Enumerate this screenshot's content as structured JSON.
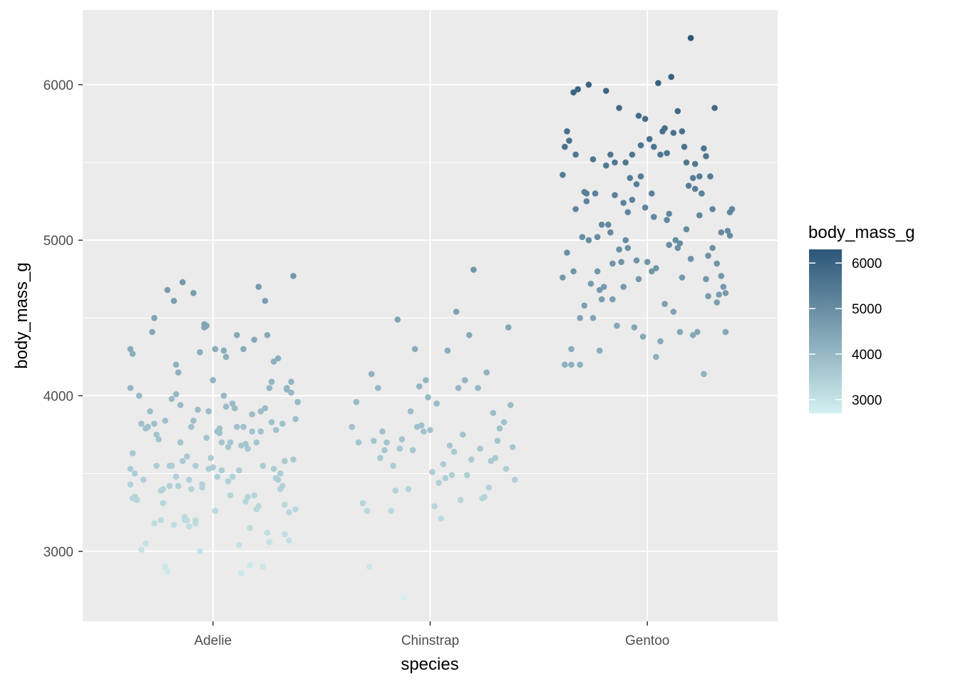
{
  "chart_data": {
    "type": "scatter",
    "jitter": true,
    "xlabel": "species",
    "ylabel": "body_mass_g",
    "categories": [
      "Adelie",
      "Chinstrap",
      "Gentoo"
    ],
    "ylim": [
      2550,
      6480
    ],
    "y_ticks": [
      3000,
      4000,
      5000,
      6000
    ],
    "y_tick_labels": [
      "3000",
      "4000",
      "5000",
      "6000"
    ],
    "grid": true,
    "color_scale": {
      "title": "body_mass_g",
      "low": 2700,
      "high": 6300,
      "low_color": "#d3f0f0",
      "high_color": "#2c5677",
      "ticks": [
        3000,
        4000,
        5000,
        6000
      ],
      "tick_labels": [
        "3000",
        "4000",
        "5000",
        "6000"
      ],
      "legend_position": "right"
    },
    "series": [
      {
        "category": "Adelie",
        "jitter": [
          -0.38,
          -0.38,
          -0.37,
          -0.36,
          -0.35,
          -0.33,
          -0.32,
          -0.31,
          -0.3,
          -0.29,
          -0.27,
          -0.26,
          -0.25,
          -0.23,
          -0.22,
          -0.21,
          -0.2,
          -0.19,
          -0.18,
          -0.17,
          -0.16,
          -0.15,
          -0.14,
          -0.13,
          -0.12,
          -0.11,
          -0.1,
          -0.09,
          -0.08,
          -0.07,
          -0.06,
          -0.05,
          -0.04,
          -0.03,
          -0.02,
          -0.01,
          0.0,
          0.01,
          0.02,
          0.03,
          0.04,
          0.05,
          0.06,
          0.07,
          0.08,
          0.09,
          0.1,
          0.11,
          0.12,
          0.13,
          0.14,
          0.15,
          0.16,
          0.17,
          0.18,
          0.19,
          0.2,
          0.21,
          0.22,
          0.23,
          0.24,
          0.25,
          0.26,
          0.27,
          0.28,
          0.29,
          0.3,
          0.31,
          0.32,
          0.33,
          0.34,
          0.35,
          0.36,
          0.37,
          0.38,
          0.39,
          -0.35,
          -0.34,
          -0.31,
          -0.27,
          -0.24,
          -0.22,
          -0.21,
          -0.19,
          -0.17,
          -0.16,
          -0.14,
          -0.12,
          -0.1,
          -0.08,
          -0.06,
          -0.04,
          -0.02,
          0.01,
          0.03,
          0.05,
          0.07,
          0.09,
          0.11,
          0.13,
          0.15,
          0.17,
          0.19,
          0.21,
          0.23,
          0.25,
          0.27,
          0.29,
          0.31,
          0.33,
          0.35,
          0.37,
          -0.33,
          -0.28,
          -0.26,
          -0.2,
          -0.15,
          -0.09,
          -0.03,
          0.02,
          0.08,
          0.14,
          0.2,
          0.26,
          0.32,
          0.36,
          -0.37,
          -0.32,
          -0.27,
          -0.23,
          -0.18,
          -0.13,
          -0.08,
          0.0,
          0.04,
          0.12,
          0.18,
          0.24,
          0.3,
          0.34,
          0.38,
          -0.24,
          -0.17,
          -0.11,
          -0.05,
          0.06,
          0.16,
          0.22,
          0.28,
          0.33
        ],
        "y": [
          4300,
          4050,
          3630,
          3350,
          3330,
          3010,
          3460,
          3050,
          3800,
          3900,
          4500,
          3750,
          3720,
          3400,
          2900,
          4680,
          3550,
          3980,
          4610,
          4200,
          3420,
          3700,
          4730,
          3200,
          3200,
          3160,
          3800,
          4660,
          3550,
          3910,
          4280,
          3430,
          4440,
          4450,
          3900,
          3600,
          4100,
          3260,
          3480,
          3760,
          3700,
          4000,
          3930,
          3450,
          3360,
          3480,
          3920,
          3800,
          3520,
          3680,
          4300,
          3320,
          3660,
          3150,
          3770,
          4360,
          3270,
          3290,
          3900,
          3550,
          4610,
          3120,
          3060,
          4090,
          3530,
          3470,
          3460,
          3400,
          3420,
          3300,
          4050,
          3070,
          4020,
          4770,
          3850,
          3960,
          3330,
          4000,
          3790,
          3820,
          3200,
          3840,
          2870,
          3550,
          4010,
          4150,
          3580,
          3610,
          3400,
          3180,
          3000,
          4460,
          3530,
          4300,
          3790,
          4290,
          3670,
          3950,
          4390,
          2860,
          3690,
          2910,
          3360,
          4700,
          2900,
          4390,
          3830,
          3780,
          3500,
          3110,
          3250,
          3590,
          3820,
          4410,
          3550,
          3420,
          3940,
          3840,
          3730,
          3770,
          3700,
          3800,
          3700,
          4050,
          3820,
          4090,
          3340,
          3460,
          3180,
          3310,
          3170,
          3220,
          3200,
          3540,
          3520,
          3040,
          3880,
          3920,
          4240,
          4040,
          3270,
          3390,
          3480,
          3460,
          3410,
          4250,
          3350,
          3770,
          4220,
          3580,
          3430,
          3530,
          4270,
          3500
        ]
      },
      {
        "category": "Chinstrap",
        "jitter": [
          -0.36,
          -0.34,
          -0.33,
          -0.31,
          -0.29,
          -0.27,
          -0.26,
          -0.24,
          -0.23,
          -0.22,
          -0.21,
          -0.2,
          -0.18,
          -0.17,
          -0.16,
          -0.15,
          -0.14,
          -0.13,
          -0.12,
          -0.1,
          -0.09,
          -0.08,
          -0.07,
          -0.06,
          -0.05,
          -0.04,
          -0.03,
          -0.02,
          -0.01,
          0.0,
          0.01,
          0.02,
          0.03,
          0.04,
          0.05,
          0.06,
          0.07,
          0.08,
          0.09,
          0.1,
          0.11,
          0.12,
          0.13,
          0.14,
          0.15,
          0.16,
          0.17,
          0.18,
          0.19,
          0.2,
          0.22,
          0.23,
          0.24,
          0.25,
          0.26,
          0.27,
          0.28,
          0.29,
          0.3,
          0.31,
          0.32,
          0.34,
          0.35,
          0.36,
          0.37,
          0.38,
          0.39,
          -0.28
        ],
        "y": [
          3800,
          3960,
          3700,
          3310,
          3260,
          4140,
          3710,
          4050,
          3600,
          3770,
          3650,
          3700,
          3260,
          3550,
          3390,
          4490,
          3660,
          3720,
          2700,
          3400,
          3900,
          3650,
          4300,
          3800,
          4060,
          3810,
          3770,
          4100,
          3990,
          3780,
          3510,
          3290,
          3950,
          3440,
          3210,
          3560,
          3470,
          4290,
          3680,
          3490,
          3640,
          4540,
          4050,
          3330,
          3750,
          4100,
          3490,
          4390,
          3590,
          4810,
          4050,
          3660,
          3340,
          3350,
          4150,
          3410,
          3580,
          3890,
          3600,
          3710,
          3790,
          3830,
          3530,
          4440,
          3940,
          3670,
          3460,
          2900
        ]
      },
      {
        "category": "Gentoo",
        "jitter": [
          -0.39,
          -0.38,
          -0.37,
          -0.36,
          -0.35,
          -0.34,
          -0.33,
          -0.32,
          -0.31,
          -0.3,
          -0.29,
          -0.28,
          -0.27,
          -0.26,
          -0.25,
          -0.24,
          -0.23,
          -0.22,
          -0.21,
          -0.2,
          -0.19,
          -0.18,
          -0.17,
          -0.16,
          -0.15,
          -0.14,
          -0.13,
          -0.12,
          -0.11,
          -0.1,
          -0.09,
          -0.08,
          -0.07,
          -0.06,
          -0.05,
          -0.04,
          -0.03,
          -0.02,
          -0.01,
          0.0,
          0.01,
          0.02,
          0.03,
          0.04,
          0.05,
          0.06,
          0.07,
          0.08,
          0.09,
          0.1,
          0.11,
          0.12,
          0.13,
          0.14,
          0.15,
          0.16,
          0.17,
          0.18,
          0.19,
          0.2,
          0.21,
          0.22,
          0.23,
          0.24,
          0.25,
          0.26,
          0.27,
          0.28,
          0.29,
          0.3,
          0.31,
          0.32,
          0.33,
          0.34,
          0.35,
          0.36,
          0.37,
          0.38,
          0.39,
          -0.37,
          -0.35,
          -0.33,
          -0.31,
          -0.29,
          -0.27,
          -0.25,
          -0.23,
          -0.21,
          -0.19,
          -0.17,
          -0.15,
          -0.13,
          -0.11,
          -0.09,
          -0.07,
          -0.05,
          -0.03,
          -0.01,
          0.02,
          0.04,
          0.06,
          0.08,
          0.1,
          0.12,
          0.14,
          0.16,
          0.18,
          0.2,
          0.22,
          0.24,
          0.26,
          0.28,
          0.3,
          0.32,
          0.34,
          0.36,
          0.38,
          -0.34,
          -0.28,
          -0.22,
          -0.16,
          -0.1,
          -0.04,
          0.03,
          0.09,
          0.15,
          0.21,
          0.27
        ],
        "y": [
          4760,
          4200,
          4920,
          5640,
          4300,
          4800,
          5550,
          5970,
          4200,
          5020,
          4580,
          5300,
          6000,
          4720,
          4500,
          5300,
          5020,
          4290,
          4620,
          4700,
          5960,
          5100,
          5050,
          4850,
          5500,
          4450,
          5850,
          4860,
          5240,
          5000,
          4950,
          5400,
          5260,
          4440,
          5360,
          4750,
          5410,
          4380,
          5780,
          4860,
          5650,
          4800,
          5600,
          4820,
          6010,
          4350,
          5700,
          4590,
          5560,
          4970,
          6050,
          4540,
          5000,
          5830,
          4410,
          5700,
          5600,
          5500,
          5350,
          6300,
          4390,
          5490,
          4410,
          5160,
          5300,
          4140,
          5540,
          4640,
          5410,
          5200,
          5850,
          4600,
          4650,
          5050,
          4700,
          4410,
          5060,
          5180,
          5200,
          5700,
          4200,
          5200,
          4500,
          5310,
          5000,
          5520,
          4800,
          5100,
          5480,
          5550,
          5290,
          4940,
          4700,
          5180,
          5550,
          4870,
          5610,
          5210,
          5300,
          4250,
          5550,
          5720,
          5170,
          5690,
          4950,
          4760,
          5070,
          4880,
          5330,
          5410,
          5590,
          4900,
          4950,
          4850,
          4770,
          4660,
          5030,
          5950,
          5250,
          4680,
          4620,
          5500,
          5800,
          5150,
          5130,
          4980,
          5400,
          4750,
          5420,
          5600
        ]
      }
    ]
  }
}
